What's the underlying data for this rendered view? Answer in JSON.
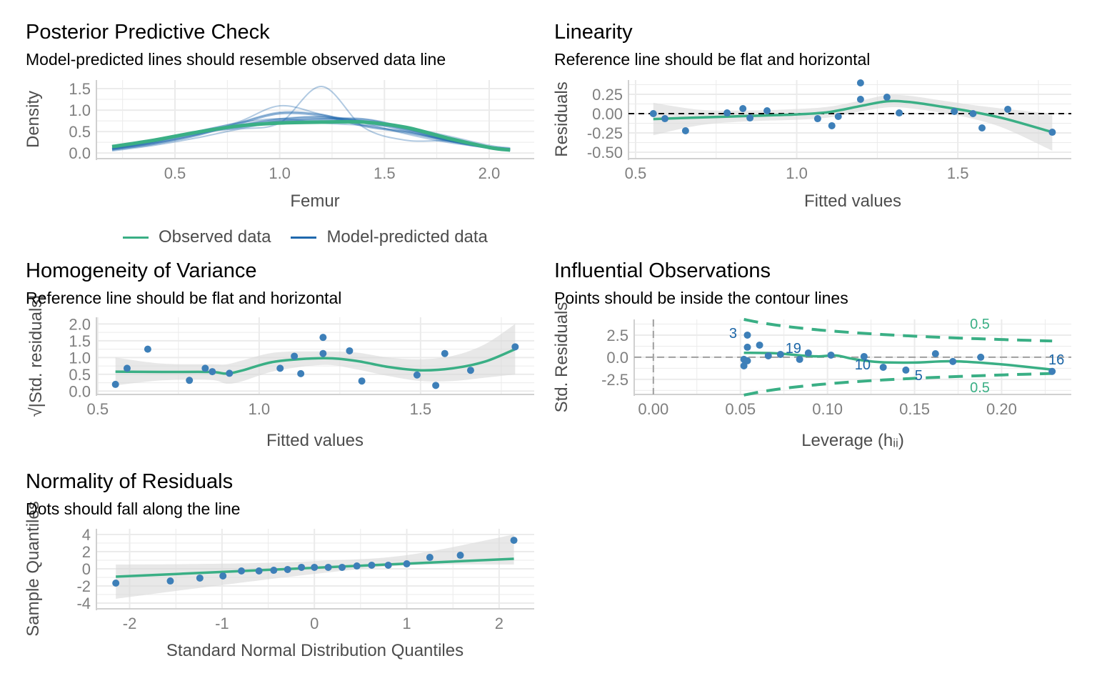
{
  "colors": {
    "observed": "#3aaf85",
    "predicted": "#1f68ad",
    "point": "#3d7fb8",
    "label": "#1b65a6",
    "band": "#d9d9d9",
    "grid": "#ebebeb",
    "axis": "#d0d0d0",
    "tick_text": "#7f7f7f",
    "axis_title": "#4d4d4d"
  },
  "legend": {
    "observed": "Observed data",
    "predicted": "Model-predicted data"
  },
  "chart_data": [
    {
      "type": "line",
      "title": "Posterior Predictive Check",
      "subtitle": "Model-predicted lines should resemble observed data line",
      "xlabel": "Femur",
      "ylabel": "Density",
      "xlim": [
        0.125,
        2.215
      ],
      "ylim": [
        -0.13,
        1.7
      ],
      "xticks": [
        0.5,
        1.0,
        1.5,
        2.0
      ],
      "xticklabels": [
        "0.5",
        "1.0",
        "1.5",
        "2.0"
      ],
      "yticks": [
        0,
        0.5,
        1.0,
        1.5
      ],
      "yticklabels": [
        "0.0",
        "0.5",
        "1.0",
        "1.5"
      ],
      "x": [
        0.2,
        0.4,
        0.6,
        0.8,
        1.0,
        1.2,
        1.4,
        1.6,
        1.8,
        2.0,
        2.1
      ],
      "series": [
        {
          "name": "Observed data",
          "values": [
            0.15,
            0.3,
            0.48,
            0.63,
            0.7,
            0.72,
            0.72,
            0.6,
            0.35,
            0.13,
            0.07
          ]
        },
        {
          "name": "Model-predicted data",
          "curves": [
            [
              0.1,
              0.25,
              0.45,
              0.65,
              0.8,
              0.85,
              0.75,
              0.55,
              0.3,
              0.12,
              0.08
            ],
            [
              0.08,
              0.22,
              0.42,
              0.7,
              0.95,
              0.9,
              0.65,
              0.5,
              0.3,
              0.15,
              0.1
            ],
            [
              0.12,
              0.28,
              0.5,
              0.6,
              0.75,
              0.8,
              0.8,
              0.6,
              0.32,
              0.12,
              0.06
            ],
            [
              0.05,
              0.18,
              0.35,
              0.55,
              0.7,
              1.55,
              0.6,
              0.3,
              0.28,
              0.15,
              0.1
            ],
            [
              0.15,
              0.3,
              0.5,
              0.7,
              0.8,
              0.7,
              0.65,
              0.6,
              0.4,
              0.18,
              0.12
            ],
            [
              0.1,
              0.26,
              0.5,
              0.72,
              1.1,
              0.9,
              0.7,
              0.45,
              0.25,
              0.12,
              0.08
            ]
          ]
        }
      ],
      "legend_position": "bottom"
    },
    {
      "type": "scatter",
      "title": "Linearity",
      "subtitle": "Reference line should be flat and horizontal",
      "xlabel": "Fitted values",
      "ylabel": "Residuals",
      "xlim": [
        0.478,
        1.852
      ],
      "ylim": [
        -0.583,
        0.435
      ],
      "xticks": [
        0.5,
        1.0,
        1.5
      ],
      "xticklabels": [
        "0.5",
        "1.0",
        "1.5"
      ],
      "yticks": [
        -0.5,
        -0.25,
        0,
        0.25
      ],
      "yticklabels": [
        "-0.50",
        "-0.25",
        "0.00",
        "0.25"
      ],
      "hline": 0,
      "points": [
        [
          0.555,
          0.0
        ],
        [
          0.591,
          -0.065
        ],
        [
          0.655,
          -0.222
        ],
        [
          0.784,
          0.009
        ],
        [
          0.833,
          0.065
        ],
        [
          0.855,
          -0.056
        ],
        [
          0.908,
          0.037
        ],
        [
          1.065,
          -0.065
        ],
        [
          1.109,
          -0.157
        ],
        [
          1.129,
          -0.037
        ],
        [
          1.198,
          0.398
        ],
        [
          1.198,
          0.185
        ],
        [
          1.28,
          0.213
        ],
        [
          1.318,
          0.009
        ],
        [
          1.489,
          0.028
        ],
        [
          1.547,
          0.0
        ],
        [
          1.575,
          -0.185
        ],
        [
          1.655,
          0.056
        ],
        [
          1.793,
          -0.241
        ]
      ],
      "smooth": {
        "x": [
          0.555,
          0.7,
          0.85,
          1.0,
          1.1,
          1.2,
          1.28,
          1.35,
          1.45,
          1.55,
          1.65,
          1.793
        ],
        "y": [
          -0.07,
          -0.05,
          -0.03,
          -0.01,
          0.02,
          0.1,
          0.16,
          0.15,
          0.09,
          0.02,
          -0.07,
          -0.24
        ],
        "lo": [
          -0.28,
          -0.15,
          -0.1,
          -0.08,
          -0.05,
          0.03,
          0.08,
          0.07,
          0.01,
          -0.07,
          -0.2,
          -0.48
        ],
        "hi": [
          0.14,
          0.05,
          0.04,
          0.06,
          0.09,
          0.17,
          0.24,
          0.23,
          0.17,
          0.11,
          0.06,
          0.0
        ]
      }
    },
    {
      "type": "scatter",
      "title": "Homogeneity of Variance",
      "subtitle": "Reference line should be flat and horizontal",
      "xlabel": "Fitted values",
      "ylabel": "√|Std. residuals|",
      "xlim": [
        0.496,
        1.852
      ],
      "ylim": [
        -0.1,
        2.2
      ],
      "xticks": [
        0.5,
        1.0,
        1.5
      ],
      "xticklabels": [
        "0.5",
        "1.0",
        "1.5"
      ],
      "yticks": [
        0,
        0.5,
        1.0,
        1.5,
        2.0
      ],
      "yticklabels": [
        "0.0",
        "0.5",
        "1.0",
        "1.5",
        "2.0"
      ],
      "points": [
        [
          0.555,
          0.2
        ],
        [
          0.591,
          0.68
        ],
        [
          0.655,
          1.25
        ],
        [
          0.784,
          0.32
        ],
        [
          0.833,
          0.68
        ],
        [
          0.855,
          0.58
        ],
        [
          0.908,
          0.53
        ],
        [
          1.065,
          0.68
        ],
        [
          1.109,
          1.04
        ],
        [
          1.129,
          0.52
        ],
        [
          1.198,
          1.6
        ],
        [
          1.198,
          1.12
        ],
        [
          1.28,
          1.2
        ],
        [
          1.318,
          0.3
        ],
        [
          1.489,
          0.48
        ],
        [
          1.547,
          0.17
        ],
        [
          1.575,
          1.12
        ],
        [
          1.655,
          0.62
        ],
        [
          1.793,
          1.32
        ]
      ],
      "smooth": {
        "x": [
          0.555,
          0.7,
          0.85,
          0.9,
          0.95,
          1.05,
          1.2,
          1.3,
          1.4,
          1.5,
          1.6,
          1.7,
          1.793
        ],
        "y": [
          0.58,
          0.57,
          0.57,
          0.52,
          0.62,
          0.88,
          0.98,
          0.9,
          0.72,
          0.62,
          0.68,
          0.88,
          1.25
        ],
        "lo": [
          0.17,
          0.32,
          0.33,
          0.22,
          0.3,
          0.6,
          0.78,
          0.65,
          0.45,
          0.3,
          0.3,
          0.4,
          0.5
        ],
        "hi": [
          1.0,
          0.82,
          0.8,
          0.8,
          0.92,
          1.15,
          1.18,
          1.15,
          1.0,
          0.95,
          1.05,
          1.4,
          2.0
        ]
      }
    },
    {
      "type": "scatter",
      "title": "Influential Observations",
      "subtitle": "Points should be inside the contour lines",
      "xlabel": "Leverage (hᵢᵢ)",
      "ylabel": "Std. Residuals",
      "xlim": [
        -0.011,
        0.24
      ],
      "ylim": [
        -4.2,
        4.27
      ],
      "xticks": [
        0,
        0.05,
        0.1,
        0.15,
        0.2
      ],
      "xticklabels": [
        "0.00",
        "0.05",
        "0.10",
        "0.15",
        "0.20"
      ],
      "yticks": [
        -2.5,
        0,
        2.5
      ],
      "yticklabels": [
        "-2.5",
        "0.0",
        "2.5"
      ],
      "hline": 0,
      "vline": 0,
      "points": [
        [
          0.054,
          2.5
        ],
        [
          0.054,
          1.13
        ],
        [
          0.061,
          1.37
        ],
        [
          0.052,
          -0.24
        ],
        [
          0.052,
          -0.97
        ],
        [
          0.054,
          -0.4
        ],
        [
          0.066,
          0.16
        ],
        [
          0.073,
          0.32
        ],
        [
          0.084,
          -0.24
        ],
        [
          0.089,
          0.48
        ],
        [
          0.102,
          0.24
        ],
        [
          0.121,
          0.08
        ],
        [
          0.132,
          -1.13
        ],
        [
          0.145,
          -1.45
        ],
        [
          0.162,
          0.4
        ],
        [
          0.172,
          -0.48
        ],
        [
          0.188,
          0.0
        ],
        [
          0.229,
          -1.6
        ]
      ],
      "point_labels": [
        {
          "text": "3",
          "x": 0.054,
          "y": 2.5
        },
        {
          "text": "19",
          "x": 0.073,
          "y": 0.32
        },
        {
          "text": "10",
          "x": 0.121,
          "y": 0.08
        },
        {
          "text": "5",
          "x": 0.145,
          "y": -1.45
        },
        {
          "text": "16",
          "x": 0.229,
          "y": -1.6
        }
      ],
      "cook_contour": {
        "level": 0.5,
        "label": "0.5",
        "hmin": 0.052,
        "hmax": 0.229,
        "parameters": 2
      },
      "smooth": {
        "x": [
          0.052,
          0.07,
          0.085,
          0.095,
          0.105,
          0.115,
          0.13,
          0.15,
          0.172,
          0.2,
          0.229
        ],
        "y": [
          0.5,
          0.45,
          0.2,
          0.1,
          0.2,
          -0.2,
          -0.55,
          -0.6,
          -0.45,
          -0.8,
          -1.4
        ]
      }
    },
    {
      "type": "scatter",
      "title": "Normality of Residuals",
      "subtitle": "Dots should fall along the line",
      "xlabel": "Standard Normal Distribution Quantiles",
      "ylabel": "Sample Quantiles",
      "xlim": [
        -2.36,
        2.38
      ],
      "ylim": [
        -4.67,
        4.67
      ],
      "xticks": [
        -2,
        -1,
        0,
        1,
        2
      ],
      "xticklabels": [
        "-2",
        "-1",
        "0",
        "1",
        "2"
      ],
      "yticks": [
        -4,
        -2,
        0,
        2,
        4
      ],
      "yticklabels": [
        "-4",
        "-2",
        "0",
        "2",
        "4"
      ],
      "points": [
        [
          -2.15,
          -1.67
        ],
        [
          -1.56,
          -1.42
        ],
        [
          -1.24,
          -1.08
        ],
        [
          -0.99,
          -0.83
        ],
        [
          -0.79,
          -0.25
        ],
        [
          -0.6,
          -0.25
        ],
        [
          -0.44,
          -0.17
        ],
        [
          -0.29,
          -0.08
        ],
        [
          -0.14,
          0.17
        ],
        [
          0,
          0.17
        ],
        [
          0.15,
          0.17
        ],
        [
          0.3,
          0.17
        ],
        [
          0.46,
          0.33
        ],
        [
          0.62,
          0.42
        ],
        [
          0.8,
          0.42
        ],
        [
          1.0,
          0.58
        ],
        [
          1.25,
          1.33
        ],
        [
          1.58,
          1.58
        ],
        [
          2.16,
          3.33
        ]
      ],
      "smooth": {
        "x": [
          -2.15,
          -1,
          0,
          1,
          2.16
        ],
        "y": [
          -0.92,
          -0.365,
          0.12,
          0.605,
          1.17
        ],
        "lo": [
          -3.5,
          -1.9,
          -0.6,
          0.4,
          0.5
        ],
        "hi": [
          0.5,
          0.6,
          0.9,
          1.6,
          4.0
        ]
      }
    }
  ]
}
